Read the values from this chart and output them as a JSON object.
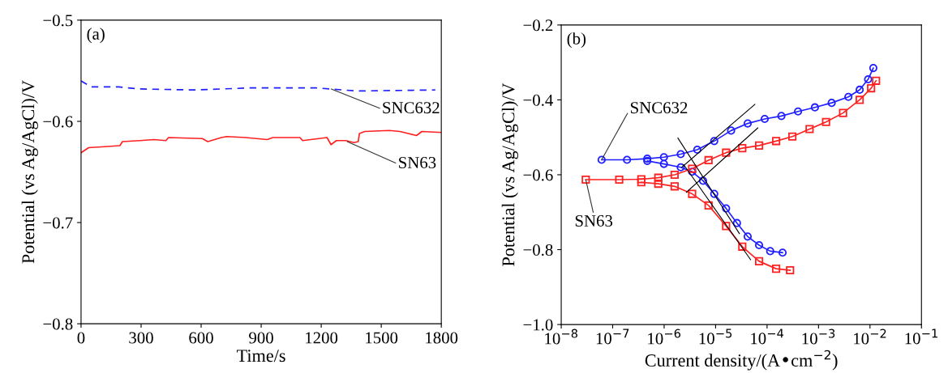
{
  "chart_data": [
    {
      "type": "line",
      "title": "(a)",
      "xlabel": "Time/s",
      "ylabel": "Potential (vs Ag/AgCl)/V",
      "xlim": [
        0,
        1800
      ],
      "xticks": [
        0,
        300,
        600,
        900,
        1200,
        1500,
        1800
      ],
      "ylim": [
        -0.8,
        -0.5
      ],
      "yticks": [
        {
          "value": -0.8,
          "label": "−0.8"
        },
        {
          "value": -0.7,
          "label": "−0.7"
        },
        {
          "value": -0.6,
          "label": "−0.6"
        },
        {
          "value": -0.5,
          "label": "−0.5"
        }
      ],
      "grid": false,
      "legend": false,
      "marker": "none",
      "series": [
        {
          "color": "#1f1fff",
          "line_style": "dashed",
          "x": [
            0,
            51,
            187,
            295,
            566,
            836,
            1175,
            1242,
            1378,
            1770
          ],
          "values": [
            -0.56,
            -0.566,
            -0.566,
            -0.568,
            -0.569,
            -0.567,
            -0.567,
            -0.568,
            -0.57,
            -0.569
          ]
        },
        {
          "color": "#ff2020",
          "line_style": "solid",
          "x": [
            0,
            38,
            119,
            194,
            207,
            295,
            363,
            424,
            437,
            606,
            633,
            701,
            728,
            823,
            931,
            958,
            1094,
            1107,
            1229,
            1249,
            1276,
            1324,
            1364,
            1385,
            1391,
            1418,
            1540,
            1594,
            1676,
            1703,
            1800
          ],
          "values": [
            -0.631,
            -0.626,
            -0.625,
            -0.624,
            -0.62,
            -0.619,
            -0.618,
            -0.619,
            -0.616,
            -0.617,
            -0.62,
            -0.616,
            -0.615,
            -0.616,
            -0.618,
            -0.616,
            -0.616,
            -0.619,
            -0.616,
            -0.623,
            -0.619,
            -0.619,
            -0.621,
            -0.62,
            -0.612,
            -0.61,
            -0.609,
            -0.61,
            -0.614,
            -0.61,
            -0.611
          ]
        }
      ],
      "annotations": [
        {
          "text": "SNC632",
          "x": 1250,
          "y": -0.568
        },
        {
          "text": "SN63",
          "x": 1330,
          "y": -0.62
        }
      ]
    },
    {
      "type": "line",
      "title": "(b)",
      "xlabel": "Current density/(A•cm$^{−2}$)",
      "ylabel": "Potential (vs Ag/AgCl)/V",
      "log": "x",
      "xlim": [
        1e-08,
        0.1
      ],
      "xticks": [
        {
          "value": 1e-08,
          "label": "10$^{−8}$"
        },
        {
          "value": 1e-07,
          "label": "10$^{−7}$"
        },
        {
          "value": 1e-06,
          "label": "10$^{−6}$"
        },
        {
          "value": 1e-05,
          "label": "10$^{−5}$"
        },
        {
          "value": 0.0001,
          "label": "10$^{−4}$"
        },
        {
          "value": 0.001,
          "label": "10$^{−3}$"
        },
        {
          "value": 0.01,
          "label": "10$^{−2}$"
        },
        {
          "value": 0.1,
          "label": "10$^{−1}$"
        }
      ],
      "ylim": [
        -1.0,
        -0.2
      ],
      "yticks": [
        {
          "value": -1.0,
          "label": "−1.0"
        },
        {
          "value": -0.8,
          "label": "−0.8"
        },
        {
          "value": -0.6,
          "label": "−0.6"
        },
        {
          "value": -0.4,
          "label": "−0.4"
        },
        {
          "value": -0.2,
          "label": "−0.2"
        }
      ],
      "grid": false,
      "legend": false,
      "series": [
        {
          "color": "#1f1fff",
          "marker": "circle",
          "x": [
            6.1e-08,
            1.9e-07,
            4.7e-07,
            9.9e-07,
            2.1e-06,
            4.4e-06,
            9.4e-06,
            2e-05,
            4.2e-05,
            9e-05,
            0.00019,
            0.0004,
            0.00085,
            0.0018,
            0.0038,
            0.0063,
            0.0092,
            0.0116
          ],
          "values": [
            -0.56,
            -0.56,
            -0.557,
            -0.553,
            -0.545,
            -0.533,
            -0.51,
            -0.482,
            -0.463,
            -0.451,
            -0.443,
            -0.431,
            -0.42,
            -0.408,
            -0.392,
            -0.373,
            -0.345,
            -0.315
          ]
        },
        {
          "color": "#1f1fff",
          "marker": "circle",
          "x": [
            4.7e-07,
            9.9e-07,
            2.1e-06,
            3.5e-06,
            5.7e-06,
            9.4e-06,
            1.6e-05,
            2.6e-05,
            4.2e-05,
            7e-05,
            0.000115,
            0.0002
          ],
          "values": [
            -0.563,
            -0.571,
            -0.58,
            -0.592,
            -0.616,
            -0.651,
            -0.69,
            -0.729,
            -0.765,
            -0.788,
            -0.804,
            -0.808
          ]
        },
        {
          "color": "#ff2020",
          "marker": "square",
          "x": [
            3e-08,
            1.34e-07,
            3.6e-07,
            7.7e-07,
            1.6e-06,
            3.5e-06,
            7.3e-06,
            1.6e-05,
            3.3e-05,
            7e-05,
            0.00015,
            0.00031,
            0.00067,
            0.0014,
            0.003,
            0.0063,
            0.0105,
            0.0131
          ],
          "values": [
            -0.613,
            -0.613,
            -0.612,
            -0.608,
            -0.6,
            -0.584,
            -0.561,
            -0.541,
            -0.529,
            -0.522,
            -0.51,
            -0.498,
            -0.478,
            -0.459,
            -0.435,
            -0.4,
            -0.369,
            -0.349
          ]
        },
        {
          "color": "#ff2020",
          "marker": "square",
          "x": [
            3.6e-07,
            7.7e-07,
            1.6e-06,
            3.5e-06,
            7.3e-06,
            1.6e-05,
            3.3e-05,
            7e-05,
            0.00015,
            0.00028
          ],
          "values": [
            -0.62,
            -0.624,
            -0.631,
            -0.651,
            -0.682,
            -0.737,
            -0.792,
            -0.831,
            -0.851,
            -0.855
          ]
        },
        {
          "color": "#000000",
          "marker": "none",
          "x": [
            2.2e-06,
            5.8e-05
          ],
          "values": [
            -0.58,
            -0.412
          ]
        },
        {
          "color": "#000000",
          "marker": "none",
          "x": [
            2.7e-06,
            6.6e-05
          ],
          "values": [
            -0.647,
            -0.475
          ]
        },
        {
          "color": "#000000",
          "marker": "none",
          "x": [
            1.85e-06,
            2.9e-05
          ],
          "values": [
            -0.502,
            -0.757
          ]
        },
        {
          "color": "#000000",
          "marker": "none",
          "x": [
            2.4e-06,
            4.8e-05
          ],
          "values": [
            -0.573,
            -0.827
          ]
        }
      ],
      "annotations": [
        {
          "text": "SNC632",
          "x": 6.1e-08,
          "y": -0.56
        },
        {
          "text": "SN63",
          "x": 3e-08,
          "y": -0.613
        }
      ]
    }
  ]
}
